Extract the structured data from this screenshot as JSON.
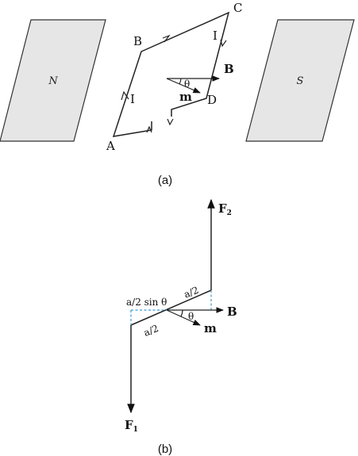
{
  "panel_a": {
    "caption": "(a)",
    "pole_left_label": "N",
    "pole_right_label": "S",
    "vertex_a": "A",
    "vertex_b": "B",
    "vertex_c": "C",
    "vertex_d": "D",
    "current_left": "I",
    "current_right": "I",
    "field_label": "B",
    "moment_label": "m",
    "angle_label": "θ"
  },
  "panel_b": {
    "caption": "(b)",
    "force_top": "F",
    "force_top_sub": "2",
    "force_bottom": "F",
    "force_bottom_sub": "1",
    "field_label": "B",
    "moment_label": "m",
    "angle_label": "θ",
    "half_side_upper": "a/2",
    "half_side_lower": "a/2",
    "projection_label": "a/2 sin θ"
  }
}
